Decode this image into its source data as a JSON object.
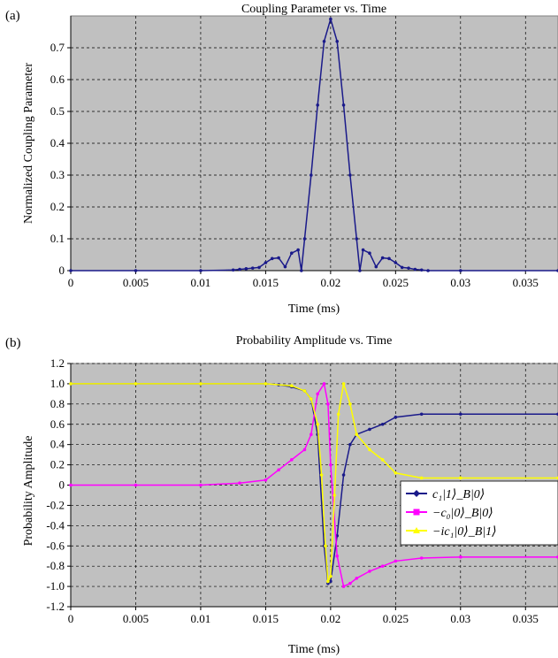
{
  "figure": {
    "panels": [
      "(a)",
      "(b)"
    ]
  },
  "chart_data": [
    {
      "type": "line",
      "title": "Coupling Parameter vs. Time",
      "xlabel": "Time (ms)",
      "ylabel": "Normalized Coupling Parameter",
      "xlim": [
        0,
        0.0375
      ],
      "ylim": [
        0,
        0.8
      ],
      "xticks": [
        "0",
        "0.005",
        "0.01",
        "0.015",
        "0.02",
        "0.025",
        "0.03",
        "0.035"
      ],
      "yticks": [
        "0",
        "0.1",
        "0.2",
        "0.3",
        "0.4",
        "0.5",
        "0.6",
        "0.7"
      ],
      "grid": true,
      "colors": {
        "series": "#1a1a8a",
        "plot_bg": "#c0c0c0"
      },
      "series": [
        {
          "x": [
            0,
            0.005,
            0.01,
            0.0125,
            0.013,
            0.0135,
            0.014,
            0.0145,
            0.015,
            0.0155,
            0.016,
            0.0165,
            0.017,
            0.0175,
            0.01775,
            0.018,
            0.0185,
            0.019,
            0.0195,
            0.02,
            0.0205,
            0.021,
            0.0215,
            0.022,
            0.02225,
            0.0225,
            0.023,
            0.0235,
            0.024,
            0.0245,
            0.025,
            0.0255,
            0.026,
            0.0265,
            0.027,
            0.0275,
            0.03,
            0.0375
          ],
          "values": [
            0,
            0,
            0,
            0.002,
            0.004,
            0.006,
            0.008,
            0.01,
            0.025,
            0.038,
            0.04,
            0.012,
            0.055,
            0.065,
            0,
            0.1,
            0.3,
            0.52,
            0.72,
            0.79,
            0.72,
            0.52,
            0.3,
            0.1,
            0,
            0.065,
            0.055,
            0.012,
            0.04,
            0.038,
            0.025,
            0.01,
            0.008,
            0.004,
            0.002,
            0,
            0,
            0
          ]
        }
      ]
    },
    {
      "type": "line",
      "title": "Probability Amplitude vs. Time",
      "xlabel": "Time (ms)",
      "ylabel": "Probability Amplitude",
      "xlim": [
        0,
        0.0375
      ],
      "ylim": [
        -1.2,
        1.2
      ],
      "xticks": [
        "0",
        "0.005",
        "0.01",
        "0.015",
        "0.02",
        "0.025",
        "0.03",
        "0.035"
      ],
      "yticks": [
        "-1.2",
        "-1.0",
        "-0.8",
        "-0.6",
        "-0.4",
        "-0.2",
        "0",
        "0.2",
        "0.4",
        "0.6",
        "0.8",
        "1.0",
        "1.2"
      ],
      "grid": true,
      "legend_position": "right",
      "colors": {
        "plot_bg": "#c0c0c0"
      },
      "series": [
        {
          "name": "c₁|1⟩_B|0⟩",
          "color": "#1a1a8a",
          "marker": "diamond",
          "x": [
            0,
            0.005,
            0.01,
            0.015,
            0.016,
            0.017,
            0.018,
            0.0185,
            0.019,
            0.0195,
            0.0198,
            0.02,
            0.0205,
            0.021,
            0.0215,
            0.022,
            0.023,
            0.024,
            0.025,
            0.027,
            0.03,
            0.0375
          ],
          "values": [
            1.0,
            1.0,
            1.0,
            1.0,
            0.99,
            0.97,
            0.93,
            0.85,
            0.5,
            -0.6,
            -0.97,
            -0.95,
            -0.5,
            0.1,
            0.4,
            0.5,
            0.55,
            0.6,
            0.67,
            0.7,
            0.7,
            0.7
          ]
        },
        {
          "name": "−c₀|0⟩_B|0⟩",
          "color": "#ff00ff",
          "marker": "square",
          "x": [
            0,
            0.005,
            0.01,
            0.013,
            0.015,
            0.016,
            0.017,
            0.018,
            0.0185,
            0.019,
            0.0195,
            0.0198,
            0.02,
            0.0205,
            0.021,
            0.0215,
            0.022,
            0.023,
            0.024,
            0.025,
            0.027,
            0.03,
            0.0375
          ],
          "values": [
            0,
            0,
            0,
            0.02,
            0.05,
            0.15,
            0.25,
            0.35,
            0.5,
            0.9,
            1.0,
            0.8,
            0.2,
            -0.7,
            -1.0,
            -0.97,
            -0.92,
            -0.85,
            -0.8,
            -0.75,
            -0.72,
            -0.71,
            -0.71
          ]
        },
        {
          "name": "−ic₁|0⟩_B|1⟩",
          "color": "#ffff00",
          "marker": "triangle",
          "x": [
            0,
            0.005,
            0.01,
            0.015,
            0.017,
            0.018,
            0.0185,
            0.019,
            0.0193,
            0.0196,
            0.0198,
            0.02,
            0.0203,
            0.0206,
            0.021,
            0.0215,
            0.022,
            0.023,
            0.024,
            0.025,
            0.027,
            0.03,
            0.0375
          ],
          "values": [
            1.0,
            1.0,
            1.0,
            1.0,
            0.98,
            0.93,
            0.85,
            0.6,
            0.1,
            -0.6,
            -0.95,
            -0.9,
            -0.1,
            0.7,
            1.0,
            0.8,
            0.5,
            0.35,
            0.25,
            0.12,
            0.07,
            0.07,
            0.07
          ]
        }
      ]
    }
  ]
}
